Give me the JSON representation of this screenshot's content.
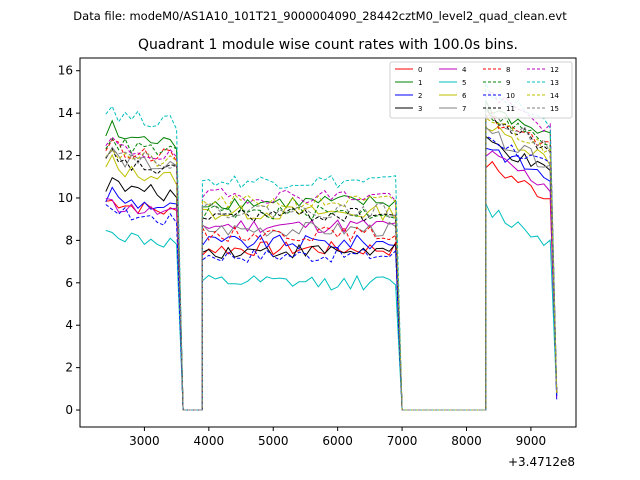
{
  "suptitle": "Data file: modeM0/AS1A10_101T21_9000004090_28442cztM0_level2_quad_clean.evt",
  "chart_data": {
    "type": "line",
    "title": "Quadrant 1 module wise count rates with 100.0s bins.",
    "xlabel": "",
    "ylabel": "",
    "offset_label": "+3.4712e8",
    "xlim": [
      2000,
      9700
    ],
    "ylim": [
      -0.8,
      16.6
    ],
    "xticks": [
      3000,
      4000,
      5000,
      6000,
      7000,
      8000,
      9000
    ],
    "xtick_labels": [
      "3000",
      "4000",
      "5000",
      "6000",
      "7000",
      "8000",
      "9000"
    ],
    "yticks": [
      0,
      2,
      4,
      6,
      8,
      10,
      12,
      14,
      16
    ],
    "ytick_labels": [
      "0",
      "2",
      "4",
      "6",
      "8",
      "10",
      "12",
      "14",
      "16"
    ],
    "legend_position": "top-right",
    "segments": [
      {
        "x_start": 2400,
        "x_end": 3500,
        "step": 100
      },
      {
        "x_start": 3900,
        "x_end": 6900,
        "step": 100
      },
      {
        "x_start": 8300,
        "x_end": 9300,
        "step": 100
      }
    ],
    "zero_spans": [
      [
        3600,
        3900
      ],
      [
        7000,
        8300
      ]
    ],
    "last_x": 9400,
    "series": [
      {
        "name": "0",
        "color": "#ff0000",
        "dash": false,
        "levels": [
          9.8,
          7.6,
          10.8
        ],
        "last": 0.8
      },
      {
        "name": "1",
        "color": "#008000",
        "dash": false,
        "levels": [
          13.0,
          9.8,
          13.6
        ],
        "last": 0.9
      },
      {
        "name": "2",
        "color": "#0000ff",
        "dash": false,
        "levels": [
          10.0,
          7.9,
          11.7
        ],
        "last": 0.5
      },
      {
        "name": "3",
        "color": "#000000",
        "dash": false,
        "levels": [
          10.6,
          7.5,
          11.9
        ],
        "last": 0.8
      },
      {
        "name": "4",
        "color": "#bf00bf",
        "dash": false,
        "levels": [
          9.7,
          8.7,
          11.3
        ],
        "last": 0.6
      },
      {
        "name": "5",
        "color": "#00bfbf",
        "dash": false,
        "levels": [
          8.3,
          6.0,
          8.7
        ],
        "last": 0.7
      },
      {
        "name": "6",
        "color": "#bfbf00",
        "dash": false,
        "levels": [
          11.4,
          9.3,
          12.6
        ],
        "last": 0.9
      },
      {
        "name": "7",
        "color": "#808080",
        "dash": false,
        "levels": [
          11.9,
          8.5,
          12.3
        ],
        "last": 0.8
      },
      {
        "name": "8",
        "color": "#ff0000",
        "dash": true,
        "levels": [
          12.4,
          8.3,
          13.1
        ],
        "last": 0.8
      },
      {
        "name": "9",
        "color": "#008000",
        "dash": true,
        "levels": [
          12.6,
          9.3,
          13.3
        ],
        "last": 0.9
      },
      {
        "name": "10",
        "color": "#0000ff",
        "dash": true,
        "levels": [
          9.4,
          7.3,
          12.2
        ],
        "last": 0.6
      },
      {
        "name": "11",
        "color": "#000000",
        "dash": true,
        "levels": [
          11.7,
          9.2,
          13.1
        ],
        "last": 0.8
      },
      {
        "name": "12",
        "color": "#bf00bf",
        "dash": true,
        "levels": [
          12.4,
          10.1,
          14.1
        ],
        "last": 0.9
      },
      {
        "name": "13",
        "color": "#00bfbf",
        "dash": true,
        "levels": [
          14.0,
          10.8,
          14.3
        ],
        "last": 0.9
      },
      {
        "name": "14",
        "color": "#bfbf00",
        "dash": true,
        "levels": [
          12.1,
          9.8,
          13.0
        ],
        "last": 0.8
      },
      {
        "name": "15",
        "color": "#808080",
        "dash": true,
        "levels": [
          12.2,
          9.4,
          13.2
        ],
        "last": 0.8
      }
    ]
  }
}
